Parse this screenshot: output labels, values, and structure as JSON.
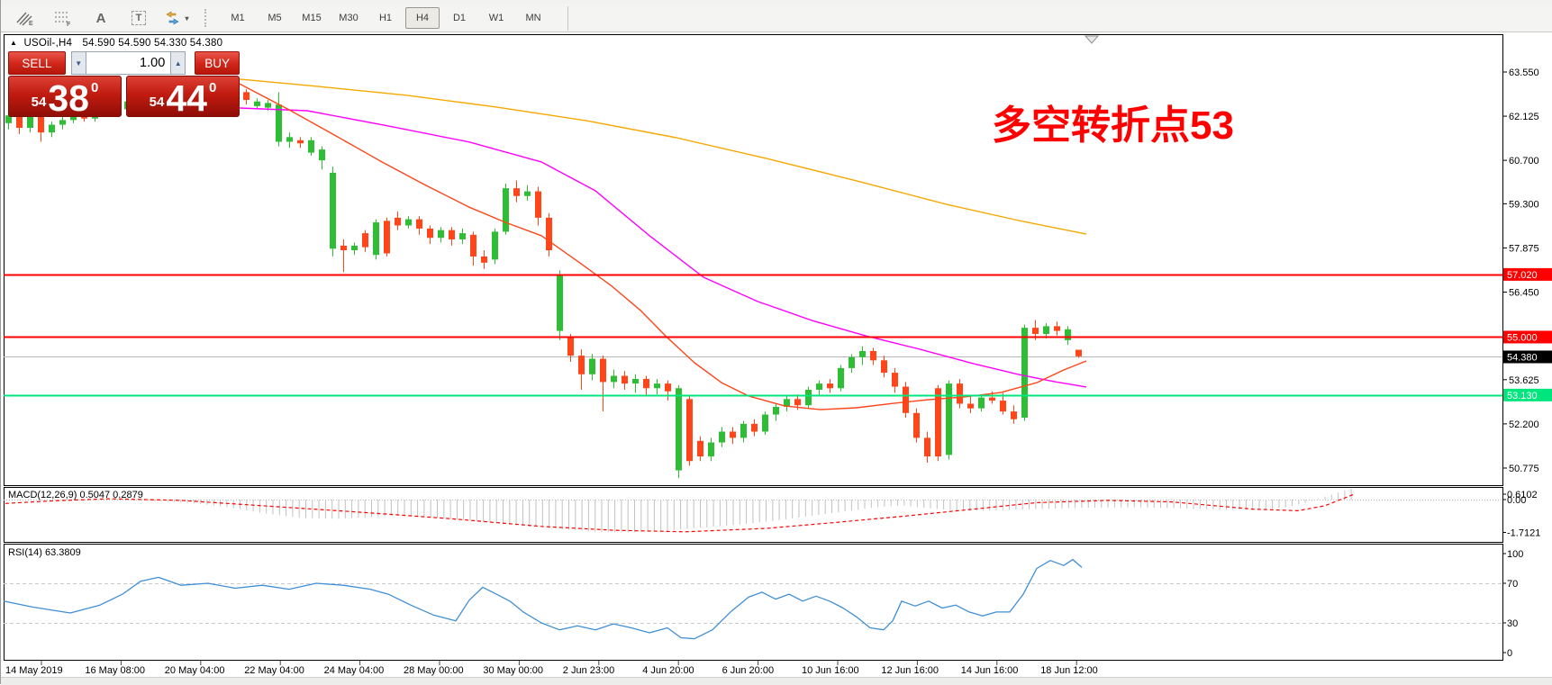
{
  "toolbar": {
    "tools": [
      {
        "id": "trendline-tool",
        "label": "E"
      },
      {
        "id": "fibonacci-tool",
        "label": "F"
      },
      {
        "id": "text-tool",
        "label": "A"
      },
      {
        "id": "textlabel-tool",
        "label": "T"
      },
      {
        "id": "objects-tool",
        "label": "▾"
      }
    ],
    "timeframes": [
      "M1",
      "M5",
      "M15",
      "M30",
      "H1",
      "H4",
      "D1",
      "W1",
      "MN"
    ],
    "active_timeframe": "H4"
  },
  "chart_header": {
    "arrow": "▲",
    "symbol": "USOil-,H4",
    "ohlc": "54.590 54.590 54.330 54.380"
  },
  "trade_panel": {
    "sell_label": "SELL",
    "buy_label": "BUY",
    "volume": "1.00",
    "down_glyph": "▼",
    "up_glyph": "▲",
    "sell_price": {
      "small": "54",
      "big": "38",
      "sup": "0"
    },
    "buy_price": {
      "small": "54",
      "big": "44",
      "sup": "0"
    }
  },
  "annotation": {
    "text": "多空转折点53",
    "color": "#ff0000"
  },
  "indicators": {
    "macd_label": "MACD(12,26,9) 0.5047 0.2879",
    "rsi_label": "RSI(14) 63.3809"
  },
  "chart_data": {
    "type": "candlestick",
    "title": "USOil H4",
    "bull_color": "#2fbd35",
    "bear_color": "#ff4519",
    "price_axis_labels": [
      "63.550",
      "62.125",
      "60.700",
      "59.300",
      "57.875",
      "56.450",
      "53.625",
      "52.200",
      "50.775"
    ],
    "hlines": [
      {
        "value": "57.020",
        "color": "#ff0000"
      },
      {
        "value": "55.000",
        "color": "#ff0000"
      },
      {
        "value": "53.130",
        "color": "#00e57d"
      }
    ],
    "current_price": {
      "value": "54.380",
      "line_color": "#b8b8b8",
      "tag_bg": "#000000"
    },
    "candles": [
      [
        61.9,
        62.35,
        61.7,
        62.15
      ],
      [
        62.15,
        62.25,
        61.55,
        61.75
      ],
      [
        61.75,
        62.3,
        61.6,
        62.1
      ],
      [
        62.1,
        62.2,
        61.3,
        61.6
      ],
      [
        61.6,
        61.95,
        61.45,
        61.85
      ],
      [
        61.85,
        62.1,
        61.7,
        62.0
      ],
      [
        62.0,
        62.25,
        61.9,
        62.15
      ],
      [
        62.15,
        62.25,
        61.95,
        62.05
      ],
      [
        62.05,
        62.4,
        61.95,
        62.3
      ],
      [
        62.3,
        62.55,
        62.2,
        62.45
      ],
      [
        62.45,
        62.55,
        62.25,
        62.35
      ],
      [
        62.35,
        62.7,
        62.25,
        62.6
      ],
      [
        62.6,
        62.85,
        62.5,
        62.75
      ],
      [
        62.75,
        62.85,
        62.55,
        62.65
      ],
      [
        62.65,
        62.95,
        62.55,
        62.85
      ],
      [
        62.85,
        63.1,
        62.75,
        63.0
      ],
      [
        63.0,
        63.1,
        62.8,
        62.9
      ],
      [
        62.9,
        63.15,
        62.8,
        63.1
      ],
      [
        63.1,
        63.3,
        63.0,
        63.2
      ],
      [
        63.2,
        63.3,
        62.95,
        63.05
      ],
      [
        63.05,
        63.25,
        62.95,
        63.15
      ],
      [
        63.15,
        63.3,
        62.8,
        62.9
      ],
      [
        62.9,
        63.0,
        62.5,
        62.65
      ],
      [
        62.45,
        62.7,
        62.35,
        62.6
      ],
      [
        62.4,
        62.65,
        62.3,
        62.55
      ],
      [
        61.3,
        62.9,
        61.15,
        62.5
      ],
      [
        61.3,
        61.6,
        61.1,
        61.45
      ],
      [
        61.35,
        61.45,
        61.1,
        61.25
      ],
      [
        60.95,
        61.45,
        60.85,
        61.35
      ],
      [
        60.7,
        61.15,
        60.4,
        61.05
      ],
      [
        57.85,
        60.5,
        57.6,
        60.3
      ],
      [
        57.95,
        58.15,
        57.1,
        57.8
      ],
      [
        57.8,
        58.05,
        57.65,
        57.95
      ],
      [
        58.35,
        58.45,
        57.75,
        57.9
      ],
      [
        57.65,
        58.8,
        57.5,
        58.7
      ],
      [
        58.75,
        58.85,
        57.6,
        57.7
      ],
      [
        58.85,
        59.05,
        58.45,
        58.6
      ],
      [
        58.6,
        58.9,
        58.5,
        58.8
      ],
      [
        58.8,
        58.9,
        58.3,
        58.5
      ],
      [
        58.5,
        58.6,
        58.0,
        58.2
      ],
      [
        58.2,
        58.55,
        58.05,
        58.45
      ],
      [
        58.45,
        58.55,
        57.95,
        58.15
      ],
      [
        58.15,
        58.5,
        58.0,
        58.35
      ],
      [
        58.3,
        58.4,
        57.3,
        57.6
      ],
      [
        57.6,
        57.8,
        57.2,
        57.4
      ],
      [
        57.5,
        58.5,
        57.35,
        58.4
      ],
      [
        58.4,
        59.95,
        58.3,
        59.8
      ],
      [
        59.8,
        60.05,
        59.35,
        59.55
      ],
      [
        59.55,
        59.9,
        59.4,
        59.7
      ],
      [
        59.7,
        59.85,
        58.6,
        58.85
      ],
      [
        58.85,
        59.0,
        57.6,
        57.8
      ],
      [
        55.2,
        57.15,
        54.9,
        57.0
      ],
      [
        55.0,
        55.1,
        54.2,
        54.4
      ],
      [
        54.4,
        54.6,
        53.3,
        53.8
      ],
      [
        53.8,
        54.45,
        53.6,
        54.3
      ],
      [
        54.3,
        54.4,
        52.6,
        53.55
      ],
      [
        53.55,
        53.95,
        53.35,
        53.75
      ],
      [
        53.75,
        53.9,
        53.3,
        53.5
      ],
      [
        53.5,
        53.8,
        53.2,
        53.65
      ],
      [
        53.65,
        53.75,
        53.1,
        53.35
      ],
      [
        53.35,
        53.65,
        53.15,
        53.5
      ],
      [
        53.5,
        53.6,
        52.95,
        53.25
      ],
      [
        50.7,
        53.45,
        50.45,
        53.35
      ],
      [
        53.0,
        53.1,
        50.85,
        51.0
      ],
      [
        51.65,
        51.8,
        51.0,
        51.15
      ],
      [
        51.15,
        51.75,
        51.0,
        51.6
      ],
      [
        51.6,
        52.1,
        51.45,
        51.95
      ],
      [
        51.95,
        52.1,
        51.55,
        51.75
      ],
      [
        51.75,
        52.3,
        51.6,
        52.2
      ],
      [
        52.2,
        52.35,
        51.8,
        51.95
      ],
      [
        51.95,
        52.6,
        51.85,
        52.5
      ],
      [
        52.5,
        52.85,
        52.3,
        52.75
      ],
      [
        52.75,
        53.1,
        52.6,
        53.0
      ],
      [
        53.0,
        53.15,
        52.65,
        52.8
      ],
      [
        52.8,
        53.4,
        52.7,
        53.3
      ],
      [
        53.3,
        53.6,
        53.1,
        53.5
      ],
      [
        53.5,
        53.65,
        53.2,
        53.35
      ],
      [
        53.35,
        54.1,
        53.25,
        54.0
      ],
      [
        54.0,
        54.45,
        53.85,
        54.35
      ],
      [
        54.35,
        54.7,
        54.1,
        54.55
      ],
      [
        54.55,
        54.65,
        54.1,
        54.25
      ],
      [
        54.25,
        54.4,
        53.7,
        53.85
      ],
      [
        53.85,
        54.0,
        53.2,
        53.4
      ],
      [
        53.4,
        53.55,
        52.4,
        52.55
      ],
      [
        52.55,
        52.7,
        51.6,
        51.75
      ],
      [
        51.75,
        51.95,
        50.95,
        51.15
      ],
      [
        53.35,
        53.45,
        51.0,
        51.15
      ],
      [
        51.2,
        53.6,
        51.05,
        53.5
      ],
      [
        53.5,
        53.65,
        52.7,
        52.85
      ],
      [
        52.85,
        53.1,
        52.55,
        52.7
      ],
      [
        52.7,
        53.15,
        52.6,
        53.05
      ],
      [
        53.05,
        53.25,
        52.85,
        52.95
      ],
      [
        52.95,
        53.2,
        52.5,
        52.6
      ],
      [
        52.6,
        52.8,
        52.2,
        52.35
      ],
      [
        52.4,
        55.4,
        52.3,
        55.3
      ],
      [
        55.3,
        55.55,
        54.9,
        55.1
      ],
      [
        55.1,
        55.45,
        54.95,
        55.35
      ],
      [
        55.35,
        55.5,
        55.05,
        55.2
      ],
      [
        54.9,
        55.35,
        54.75,
        55.25
      ],
      [
        54.59,
        54.59,
        54.33,
        54.38
      ]
    ],
    "moving_averages": [
      {
        "name": "ma-slow",
        "color": "#f5a800",
        "points": [
          [
            265,
            63.32
          ],
          [
            350,
            63.09
          ],
          [
            450,
            62.8
          ],
          [
            550,
            62.42
          ],
          [
            650,
            61.98
          ],
          [
            750,
            61.43
          ],
          [
            850,
            60.76
          ],
          [
            950,
            60.04
          ],
          [
            1050,
            59.28
          ],
          [
            1130,
            58.76
          ],
          [
            1205,
            58.32
          ]
        ]
      },
      {
        "name": "ma-mid",
        "color": "#ff00ff",
        "points": [
          [
            265,
            62.39
          ],
          [
            340,
            62.3
          ],
          [
            430,
            61.81
          ],
          [
            520,
            61.29
          ],
          [
            600,
            60.65
          ],
          [
            660,
            59.72
          ],
          [
            720,
            58.27
          ],
          [
            780,
            56.93
          ],
          [
            840,
            56.15
          ],
          [
            900,
            55.54
          ],
          [
            960,
            55.04
          ],
          [
            1020,
            54.61
          ],
          [
            1080,
            54.14
          ],
          [
            1130,
            53.79
          ],
          [
            1170,
            53.56
          ],
          [
            1205,
            53.39
          ]
        ]
      },
      {
        "name": "ma-fast",
        "color": "#ff4519",
        "points": [
          [
            265,
            63.17
          ],
          [
            320,
            62.33
          ],
          [
            370,
            61.52
          ],
          [
            420,
            60.7
          ],
          [
            470,
            59.92
          ],
          [
            520,
            59.19
          ],
          [
            560,
            58.7
          ],
          [
            600,
            58.27
          ],
          [
            640,
            57.45
          ],
          [
            677,
            56.67
          ],
          [
            710,
            55.86
          ],
          [
            740,
            54.98
          ],
          [
            770,
            54.17
          ],
          [
            800,
            53.53
          ],
          [
            830,
            53.1
          ],
          [
            870,
            52.78
          ],
          [
            910,
            52.66
          ],
          [
            950,
            52.72
          ],
          [
            990,
            52.86
          ],
          [
            1030,
            52.98
          ],
          [
            1070,
            53.07
          ],
          [
            1110,
            53.21
          ],
          [
            1150,
            53.53
          ],
          [
            1180,
            53.94
          ],
          [
            1205,
            54.23
          ]
        ]
      }
    ],
    "macd": {
      "axis_labels": [
        "0.6102",
        "0.00",
        "-1.7121"
      ],
      "histogram_color": "#c2c2c2",
      "signal_color": "#ff0000",
      "histogram": [
        [
          140,
          -0.02
        ],
        [
          170,
          -0.08
        ],
        [
          210,
          -0.18
        ],
        [
          250,
          -0.38
        ],
        [
          290,
          -0.7
        ],
        [
          330,
          -0.95
        ],
        [
          370,
          -1.0
        ],
        [
          410,
          -0.92
        ],
        [
          440,
          -0.8
        ],
        [
          480,
          -0.92
        ],
        [
          520,
          -1.1
        ],
        [
          560,
          -1.3
        ],
        [
          610,
          -1.5
        ],
        [
          660,
          -1.68
        ],
        [
          700,
          -1.71
        ],
        [
          740,
          -1.62
        ],
        [
          780,
          -1.45
        ],
        [
          820,
          -1.3
        ],
        [
          860,
          -1.1
        ],
        [
          900,
          -0.85
        ],
        [
          940,
          -0.6
        ],
        [
          975,
          -0.38
        ],
        [
          1000,
          -0.3
        ],
        [
          1030,
          -0.45
        ],
        [
          1070,
          -0.6
        ],
        [
          1110,
          -0.55
        ],
        [
          1160,
          -0.48
        ],
        [
          1210,
          -0.42
        ],
        [
          1260,
          -0.4
        ],
        [
          1310,
          -0.46
        ],
        [
          1355,
          -0.52
        ],
        [
          1395,
          -0.55
        ],
        [
          1425,
          -0.42
        ],
        [
          1450,
          -0.15
        ],
        [
          1472,
          0.18
        ],
        [
          1490,
          0.45
        ],
        [
          1503,
          0.61
        ]
      ],
      "signal": [
        [
          5,
          -0.2
        ],
        [
          60,
          -0.06
        ],
        [
          120,
          0.04
        ],
        [
          200,
          -0.04
        ],
        [
          300,
          -0.35
        ],
        [
          400,
          -0.66
        ],
        [
          500,
          -1.0
        ],
        [
          600,
          -1.4
        ],
        [
          680,
          -1.6
        ],
        [
          760,
          -1.68
        ],
        [
          850,
          -1.5
        ],
        [
          930,
          -1.18
        ],
        [
          1000,
          -0.88
        ],
        [
          1080,
          -0.5
        ],
        [
          1150,
          -0.16
        ],
        [
          1230,
          -0.04
        ],
        [
          1300,
          -0.12
        ],
        [
          1390,
          -0.5
        ],
        [
          1440,
          -0.58
        ],
        [
          1470,
          -0.32
        ],
        [
          1503,
          0.29
        ]
      ]
    },
    "rsi": {
      "axis_labels": [
        "100",
        "70",
        "30",
        "0"
      ],
      "levels": [
        70,
        30
      ],
      "line_color": "#3f8fd6",
      "points": [
        [
          3,
          52
        ],
        [
          35,
          46
        ],
        [
          77,
          40
        ],
        [
          110,
          48
        ],
        [
          135,
          59
        ],
        [
          155,
          72
        ],
        [
          175,
          76
        ],
        [
          200,
          68
        ],
        [
          230,
          70
        ],
        [
          260,
          65
        ],
        [
          290,
          68
        ],
        [
          320,
          64
        ],
        [
          350,
          70
        ],
        [
          380,
          68
        ],
        [
          410,
          64
        ],
        [
          430,
          59
        ],
        [
          455,
          48
        ],
        [
          480,
          38
        ],
        [
          505,
          32
        ],
        [
          520,
          53
        ],
        [
          535,
          66
        ],
        [
          550,
          59
        ],
        [
          565,
          52
        ],
        [
          580,
          41
        ],
        [
          600,
          30
        ],
        [
          620,
          23
        ],
        [
          640,
          27
        ],
        [
          660,
          23
        ],
        [
          680,
          29
        ],
        [
          700,
          25
        ],
        [
          720,
          20
        ],
        [
          740,
          25
        ],
        [
          755,
          15
        ],
        [
          770,
          14
        ],
        [
          790,
          23
        ],
        [
          810,
          41
        ],
        [
          830,
          56
        ],
        [
          845,
          61
        ],
        [
          860,
          54
        ],
        [
          875,
          59
        ],
        [
          890,
          52
        ],
        [
          905,
          57
        ],
        [
          920,
          52
        ],
        [
          935,
          45
        ],
        [
          950,
          36
        ],
        [
          965,
          25
        ],
        [
          980,
          23
        ],
        [
          990,
          32
        ],
        [
          1000,
          52
        ],
        [
          1015,
          47
        ],
        [
          1030,
          52
        ],
        [
          1045,
          45
        ],
        [
          1060,
          48
        ],
        [
          1075,
          41
        ],
        [
          1090,
          37
        ],
        [
          1105,
          41
        ],
        [
          1120,
          41
        ],
        [
          1135,
          59
        ],
        [
          1150,
          85
        ],
        [
          1165,
          93
        ],
        [
          1180,
          88
        ],
        [
          1190,
          94
        ],
        [
          1200,
          86
        ]
      ]
    },
    "time_axis": [
      "14 May 2019",
      "16 May 08:00",
      "20 May 04:00",
      "22 May 04:00",
      "24 May 04:00",
      "28 May 00:00",
      "30 May 00:00",
      "2 Jun 23:00",
      "4 Jun 20:00",
      "6 Jun 20:00",
      "10 Jun 16:00",
      "12 Jun 16:00",
      "14 Jun 16:00",
      "18 Jun 12:00"
    ]
  }
}
